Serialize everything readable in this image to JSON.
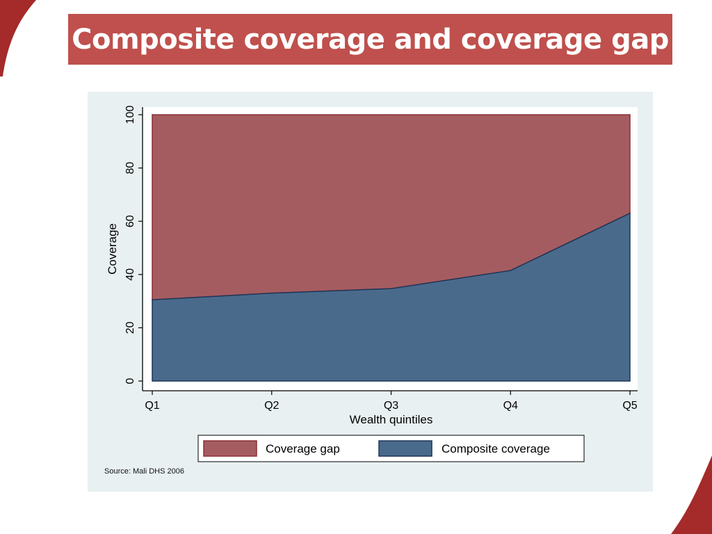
{
  "slide": {
    "title": "Composite coverage and coverage gap",
    "accent_color": "#bf504d"
  },
  "chart_data": {
    "type": "area",
    "categories": [
      "Q1",
      "Q2",
      "Q3",
      "Q4",
      "Q5"
    ],
    "series": [
      {
        "name": "Coverage gap",
        "values": [
          69.5,
          67,
          65.3,
          58.5,
          37
        ],
        "color": "#a55c60",
        "stacked_on": "Composite coverage"
      },
      {
        "name": "Composite coverage",
        "values": [
          30.5,
          33,
          34.7,
          41.5,
          63
        ],
        "color": "#4a6a8c"
      }
    ],
    "xlabel": "Wealth quintiles",
    "ylabel": "Coverage",
    "ylim": [
      0,
      100
    ],
    "yticks": [
      0,
      20,
      40,
      60,
      80,
      100
    ],
    "grid": false,
    "legend_position": "bottom",
    "note": "Source: Mali DHS 2006"
  }
}
